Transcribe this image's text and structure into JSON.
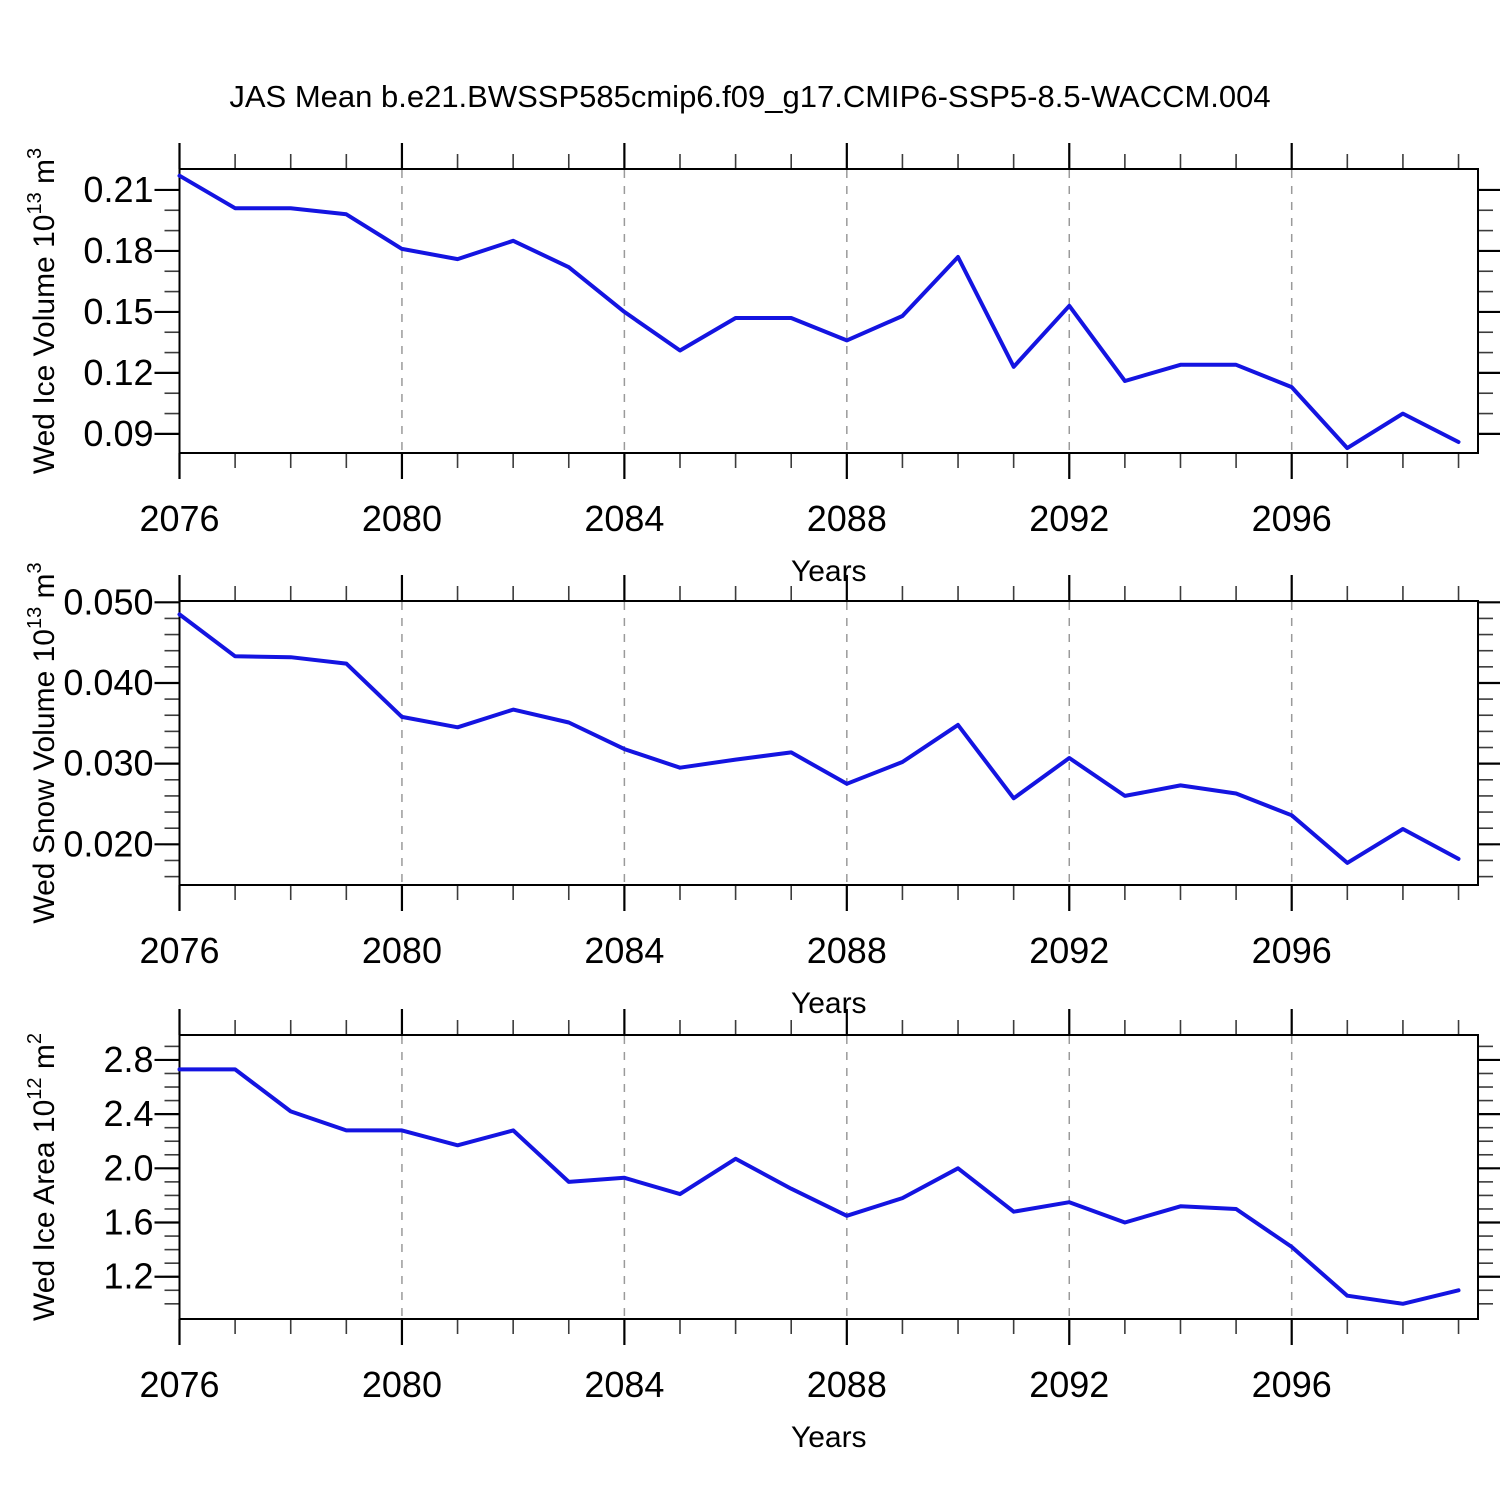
{
  "chart_data": {
    "type": "line",
    "title": "JAS Mean b.e21.BWSSP585cmip6.f09_g17.CMIP6-SSP5-8.5-WACCM.004",
    "line_color": "#1414e1",
    "grid_color": "#9a9a9a",
    "grid_style": "dashed",
    "legend": "none",
    "x_axis": {
      "label": "Years",
      "xlim": [
        2076,
        2099.35
      ],
      "major_ticks": [
        2076,
        2080,
        2084,
        2088,
        2092,
        2096
      ],
      "tick_labels": [
        "2076",
        "2080",
        "2084",
        "2088",
        "2092",
        "2096"
      ],
      "minor_step": 1,
      "gridlines_at": [
        2080,
        2084,
        2088,
        2092,
        2096
      ]
    },
    "years": [
      2076,
      2077,
      2078,
      2079,
      2080,
      2081,
      2082,
      2083,
      2084,
      2085,
      2086,
      2087,
      2088,
      2089,
      2090,
      2091,
      2092,
      2093,
      2094,
      2095,
      2096,
      2097,
      2098,
      2099
    ],
    "panels": [
      {
        "name": "wed-ice-volume",
        "ylabel": "Wed Ice Volume 10^13 m^3",
        "ylabel_segments": [
          {
            "text": "Wed Ice Volume 10"
          },
          {
            "text": "13",
            "sup": true
          },
          {
            "text": " m"
          },
          {
            "text": "3",
            "sup": true
          }
        ],
        "ylim": [
          0.0806,
          0.2203
        ],
        "ytick_values": [
          0.21,
          0.18,
          0.15,
          0.12,
          0.09
        ],
        "ytick_labels": [
          "0.21",
          "0.18",
          "0.15",
          "0.12",
          "0.09"
        ],
        "yminor_step": 0.01,
        "values": [
          0.217,
          0.201,
          0.201,
          0.198,
          0.181,
          0.176,
          0.185,
          0.172,
          0.15,
          0.131,
          0.147,
          0.147,
          0.136,
          0.148,
          0.177,
          0.123,
          0.153,
          0.116,
          0.124,
          0.124,
          0.113,
          0.083,
          0.1,
          0.086
        ]
      },
      {
        "name": "wed-snow-volume",
        "ylabel": "Wed Snow Volume 10^13 m^3",
        "ylabel_segments": [
          {
            "text": "Wed Snow Volume 10"
          },
          {
            "text": "13",
            "sup": true
          },
          {
            "text": " m"
          },
          {
            "text": "3",
            "sup": true
          }
        ],
        "ylim": [
          0.01496,
          0.05016
        ],
        "ytick_values": [
          0.05,
          0.04,
          0.03,
          0.02
        ],
        "ytick_labels": [
          "0.050",
          "0.040",
          "0.030",
          "0.020"
        ],
        "yminor_step": 0.002,
        "values": [
          0.0485,
          0.0433,
          0.0432,
          0.0424,
          0.0358,
          0.0345,
          0.0367,
          0.0351,
          0.0318,
          0.0295,
          0.0305,
          0.0314,
          0.0275,
          0.0302,
          0.0348,
          0.0257,
          0.0307,
          0.026,
          0.0273,
          0.0263,
          0.0236,
          0.0177,
          0.0219,
          0.0182
        ]
      },
      {
        "name": "wed-ice-area",
        "ylabel": "Wed Ice Area 10^12 m^2",
        "ylabel_segments": [
          {
            "text": "Wed Ice Area 10"
          },
          {
            "text": "12",
            "sup": true
          },
          {
            "text": " m"
          },
          {
            "text": "2",
            "sup": true
          }
        ],
        "ylim": [
          0.888,
          2.984
        ],
        "ytick_values": [
          2.8,
          2.4,
          2.0,
          1.6,
          1.2
        ],
        "ytick_labels": [
          "2.8",
          "2.4",
          "2.0",
          "1.6",
          "1.2"
        ],
        "yminor_step": 0.1,
        "values": [
          2.73,
          2.73,
          2.42,
          2.28,
          2.28,
          2.17,
          2.28,
          1.9,
          1.93,
          1.81,
          2.07,
          1.85,
          1.65,
          1.78,
          2.0,
          1.68,
          1.75,
          1.6,
          1.72,
          1.7,
          1.42,
          1.06,
          1.0,
          1.1
        ]
      }
    ]
  }
}
